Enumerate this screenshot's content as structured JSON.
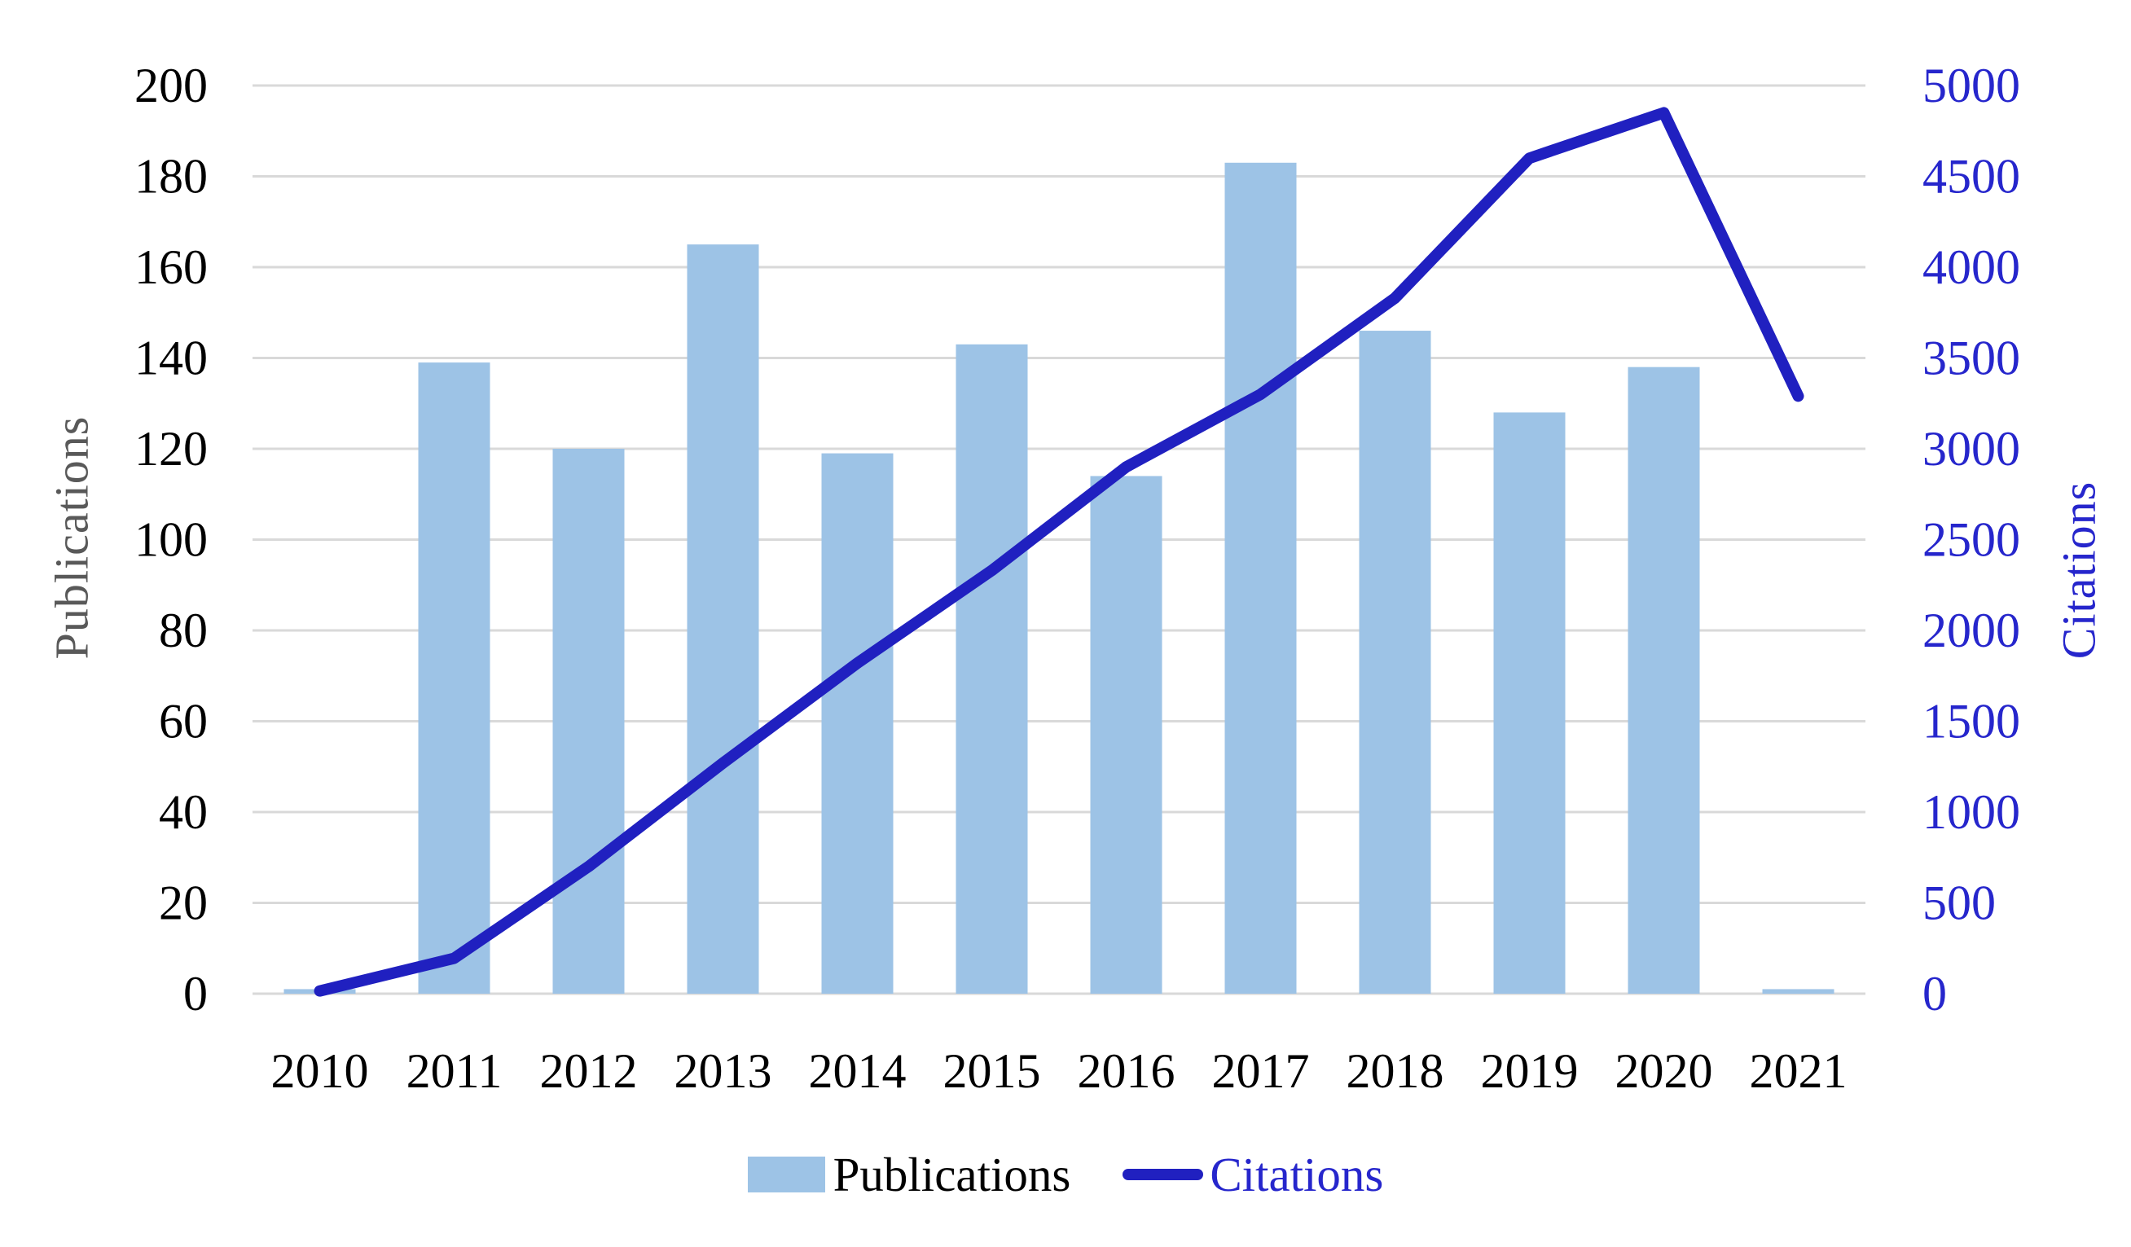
{
  "chart_data": {
    "type": "combo-bar-line",
    "title": "",
    "categories": [
      "2010",
      "2011",
      "2012",
      "2013",
      "2014",
      "2015",
      "2016",
      "2017",
      "2018",
      "2019",
      "2020",
      "2021"
    ],
    "series": [
      {
        "name": "Publications",
        "type": "bar",
        "axis": "left",
        "values": [
          1,
          139,
          120,
          165,
          119,
          143,
          114,
          183,
          146,
          128,
          138,
          1
        ]
      },
      {
        "name": "Citations",
        "type": "line",
        "axis": "right",
        "values": [
          15,
          195,
          700,
          1270,
          1820,
          2330,
          2900,
          3300,
          3830,
          4600,
          4850,
          3290
        ]
      }
    ],
    "left_axis": {
      "label": "Publications",
      "min": 0,
      "max": 200,
      "step": 20,
      "ticks": [
        "0",
        "20",
        "40",
        "60",
        "80",
        "100",
        "120",
        "140",
        "160",
        "180",
        "200"
      ]
    },
    "right_axis": {
      "label": "Citations",
      "min": 0,
      "max": 5000,
      "step": 500,
      "ticks": [
        "0",
        "500",
        "1000",
        "1500",
        "2000",
        "2500",
        "3000",
        "3500",
        "4000",
        "4500",
        "5000"
      ]
    },
    "grid": true,
    "legend_position": "bottom"
  },
  "legend": {
    "publications": "Publications",
    "citations": "Citations"
  },
  "colors": {
    "bar": "#9DC3E6",
    "line": "#2020C0",
    "right_axis_text": "#2626CC",
    "left_tick_text": "#000000",
    "x_tick_text": "#000000",
    "left_title_text": "#595959",
    "gridline": "#D9D9D9",
    "background": "#FFFFFF"
  }
}
